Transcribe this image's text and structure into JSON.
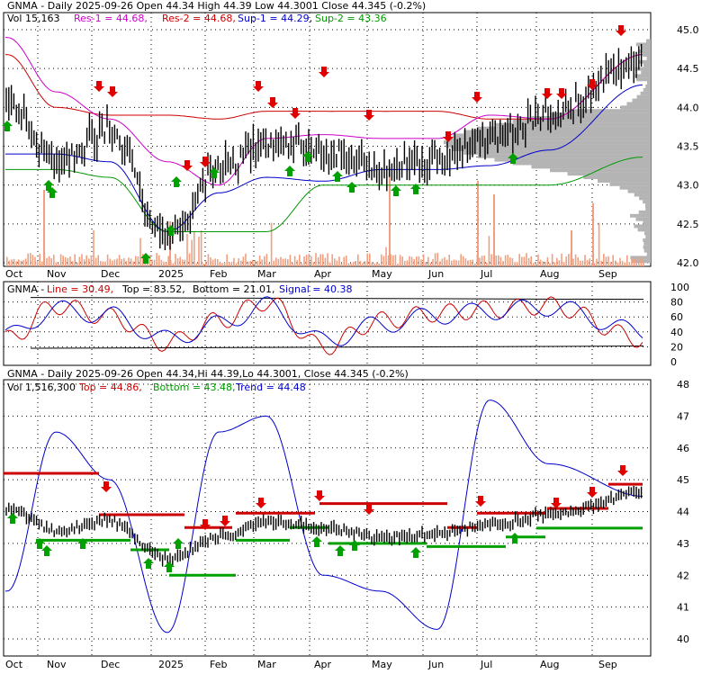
{
  "colors": {
    "background": "#ffffff",
    "grid": "#000000",
    "price_bar": "#000000",
    "volume_bar": "#f0a080",
    "resistance": "#cc0000",
    "res2_line": "#cc00cc",
    "support1_line": "#0000cc",
    "support2_line": "#009900",
    "volume_profile": "#b4b4b4",
    "down_arrow": "#e00000",
    "up_arrow": "#00a000",
    "line_red": "#cc0000",
    "signal_blue": "#0000cc",
    "dark_band": "#000000"
  },
  "x_labels": [
    "Oct",
    "Nov",
    "Dec",
    "2025",
    "Feb",
    "Mar",
    "Apr",
    "May",
    "Jun",
    "Jul",
    "Aug",
    "Sep"
  ],
  "panel1": {
    "title": "GNMA - Daily 2025-09-26 Open 44.34  High 44.39  Low 44.3001  Close 44.345 (-0.2%)",
    "legend_vol": "Vol 15,163",
    "legend_res1": "Res-1 = 44.68,",
    "legend_res2": "Res-2 = 44.68,",
    "legend_sup1": "Sup-1 = 44.29,",
    "legend_sup2": "Sup-2 = 43.36",
    "y_ticks": [
      "45.0",
      "44.5",
      "44.0",
      "43.5",
      "43.0",
      "42.5",
      "42.0"
    ]
  },
  "panel2": {
    "title": "GNMA - ",
    "legend_line": "Line = 30.49,",
    "legend_top": "Top = 83.52,",
    "legend_bottom": "Bottom = 21.01,",
    "legend_signal": "Signal = 40.38",
    "y_ticks": [
      "100",
      "80",
      "60",
      "40",
      "20",
      "0"
    ]
  },
  "panel3": {
    "title": "GNMA - Daily 2025-09-26 Open 44.34,Hi 44.39,Lo 44.3001, Close 44.345 (-0.2%)",
    "legend_vol": "Vol 1,516,300",
    "legend_top": "Top = 44.86,",
    "legend_bottom": "Bottom = 43.48,",
    "legend_trend": "Trend = 44.48",
    "y_ticks": [
      "48",
      "47",
      "46",
      "45",
      "44",
      "43",
      "42",
      "41",
      "40"
    ]
  },
  "chart_data": [
    {
      "type": "line",
      "title": "GNMA - Daily 2025-09-26",
      "x": [
        "Oct",
        "Nov",
        "Dec",
        "2025",
        "Feb",
        "Mar",
        "Apr",
        "May",
        "Jun",
        "Jul",
        "Aug",
        "Sep"
      ],
      "ylim": [
        42.0,
        45.0
      ],
      "series": [
        {
          "name": "Close",
          "values": [
            44.05,
            43.3,
            43.7,
            42.35,
            43.2,
            43.55,
            43.45,
            43.2,
            43.3,
            43.6,
            43.9,
            44.6
          ]
        },
        {
          "name": "Res-1",
          "values": [
            44.68,
            44.0,
            43.9,
            43.9,
            43.85,
            43.95,
            43.95,
            43.95,
            43.95,
            43.85,
            43.85,
            44.68
          ]
        },
        {
          "name": "Res-2",
          "values": [
            44.9,
            44.2,
            43.85,
            43.3,
            43.0,
            43.6,
            43.65,
            43.6,
            43.6,
            43.9,
            43.85,
            44.68
          ]
        },
        {
          "name": "Sup-1",
          "values": [
            43.4,
            43.4,
            43.3,
            42.4,
            42.9,
            43.1,
            43.05,
            43.2,
            43.2,
            43.25,
            43.45,
            44.29
          ]
        },
        {
          "name": "Sup-2",
          "values": [
            43.2,
            43.2,
            43.1,
            42.4,
            42.4,
            42.4,
            43.0,
            43.0,
            43.0,
            43.0,
            43.0,
            43.36
          ]
        }
      ],
      "volume_profile_peak": 43.55
    },
    {
      "type": "line",
      "title": "GNMA",
      "x": [
        "Oct",
        "Nov",
        "Dec",
        "2025",
        "Feb",
        "Mar",
        "Apr",
        "May",
        "Jun",
        "Jul",
        "Aug",
        "Sep"
      ],
      "ylim": [
        0,
        100
      ],
      "series": [
        {
          "name": "Line",
          "values": [
            30,
            75,
            60,
            25,
            55,
            80,
            20,
            55,
            65,
            70,
            75,
            30.49
          ]
        },
        {
          "name": "Signal",
          "values": [
            35,
            70,
            62,
            30,
            50,
            75,
            28,
            50,
            62,
            68,
            73,
            40.38
          ]
        },
        {
          "name": "Top",
          "values": [
            83.52,
            83.52,
            83.52,
            83.52,
            83.52,
            83.52,
            83.52,
            83.52,
            83.52,
            83.52,
            83.52,
            83.52
          ]
        },
        {
          "name": "Bottom",
          "values": [
            21.01,
            21.01,
            21.01,
            21.01,
            21.01,
            21.01,
            21.01,
            21.01,
            21.01,
            21.01,
            21.01,
            21.01
          ]
        }
      ]
    },
    {
      "type": "line",
      "title": "GNMA - Daily 2025-09-26",
      "x": [
        "Oct",
        "Nov",
        "Dec",
        "2025",
        "Feb",
        "Mar",
        "Apr",
        "May",
        "Jun",
        "Jul",
        "Aug",
        "Sep"
      ],
      "ylim": [
        40,
        48
      ],
      "series": [
        {
          "name": "Trend",
          "values": [
            41.5,
            46.5,
            45.0,
            40.2,
            46.5,
            47.0,
            42.0,
            41.5,
            40.3,
            47.5,
            45.5,
            44.48
          ]
        },
        {
          "name": "Price",
          "values": [
            44.1,
            43.4,
            43.7,
            42.5,
            43.2,
            43.7,
            43.5,
            43.2,
            43.3,
            43.6,
            43.9,
            44.6
          ]
        }
      ],
      "levels": {
        "Top": 44.86,
        "Bottom": 43.48
      }
    }
  ]
}
